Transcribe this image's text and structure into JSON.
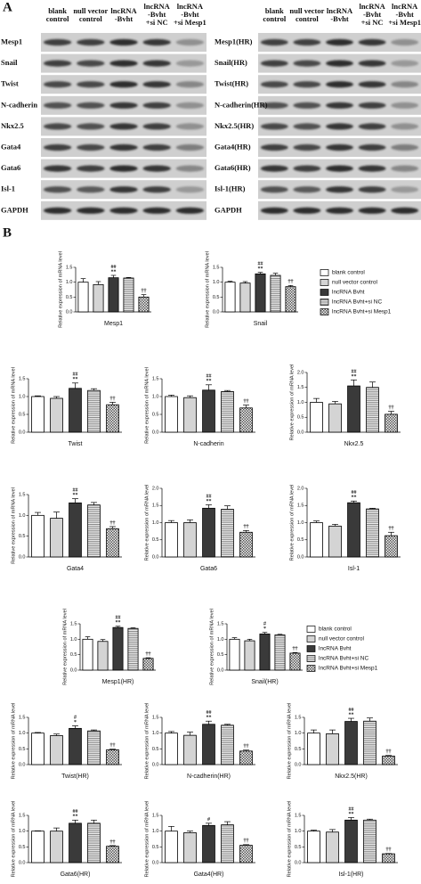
{
  "panels": {
    "a": "A",
    "b": "B"
  },
  "blots": [
    {
      "headers": [
        [
          "blank",
          "control"
        ],
        [
          "null vector",
          "control"
        ],
        [
          "lncRNA",
          "-Bvht"
        ],
        [
          "lncRNA",
          "-Bvht",
          "+si NC"
        ],
        [
          "lncRNA",
          "-Bvht",
          "+si Mesp1"
        ]
      ],
      "rows": [
        "Mesp1",
        "Snail",
        "Twist",
        "N-cadherin",
        "Nkx2.5",
        "Gata4",
        "Gata6",
        "Isl-1",
        "GAPDH"
      ]
    },
    {
      "headers": [
        [
          "blank",
          "control"
        ],
        [
          "null vector",
          "control"
        ],
        [
          "lncRNA",
          "-Bvht"
        ],
        [
          "lncRNA",
          "-Bvht",
          "+si NC"
        ],
        [
          "lncRNA",
          "-Bvht",
          "+si Mesp1"
        ]
      ],
      "rows": [
        "Mesp1(HR)",
        "Snail(HR)",
        "Twist(HR)",
        "N-cadherin(HR)",
        "Nkx2.5(HR)",
        "Gata4(HR)",
        "Gata6(HR)",
        "Isl-1(HR)",
        "GAPDH"
      ]
    }
  ],
  "legend": [
    "blank control",
    "null vector control",
    "lncRNA Bvht",
    "lncRNA Bvht+si NC",
    "lncRNA Bvht+si Mesp1"
  ],
  "bar_colors": [
    "#ffffff",
    "#d4d4d4",
    "#3a3a3a",
    "#8a8a8a",
    "#555555"
  ],
  "chart_data": [
    {
      "type": "bar",
      "title": "Mesp1",
      "y_label": "Relative expression of mRNA level",
      "values": [
        1.0,
        0.92,
        1.15,
        1.14,
        0.5
      ],
      "errors": [
        0.12,
        0.1,
        0.08,
        0.02,
        0.08
      ],
      "annotations": [
        null,
        null,
        [
          "##",
          "**"
        ],
        null,
        [
          "††"
        ]
      ],
      "ylim": [
        0,
        1.5
      ],
      "yticks": [
        {
          "value": 0,
          "label": "0.0"
        },
        0.5,
        {
          "value": 1,
          "label": "1.0"
        },
        {
          "value": 1.5,
          "label": "1.5"
        }
      ]
    },
    {
      "type": "bar",
      "title": "Snail",
      "y_label": "Relative expression of mRNA level",
      "values": [
        1.0,
        0.97,
        1.28,
        1.23,
        0.85
      ],
      "errors": [
        0.03,
        0.05,
        0.05,
        0.07,
        0.04
      ],
      "annotations": [
        null,
        null,
        [
          "##",
          "**"
        ],
        null,
        [
          "††"
        ]
      ],
      "ylim": [
        0,
        1.5
      ],
      "yticks": [
        {
          "value": 0,
          "label": "0.0"
        },
        0.5,
        {
          "value": 1,
          "label": "1.0"
        },
        {
          "value": 1.5,
          "label": "1.5"
        }
      ]
    },
    {
      "type": "bar",
      "title": "Twist",
      "y_label": "Relative expression of mRNA level",
      "values": [
        1.0,
        0.95,
        1.23,
        1.17,
        0.77
      ],
      "errors": [
        0.02,
        0.05,
        0.15,
        0.05,
        0.07
      ],
      "annotations": [
        null,
        null,
        [
          "##",
          "**"
        ],
        null,
        [
          "††"
        ]
      ],
      "ylim": [
        0,
        1.5
      ],
      "yticks": [
        {
          "value": 0,
          "label": "0.0"
        },
        0.5,
        {
          "value": 1,
          "label": "1.0"
        },
        {
          "value": 1.5,
          "label": "1.5"
        }
      ]
    },
    {
      "type": "bar",
      "title": "N-cadherin",
      "y_label": "Relative expression of mRNA level",
      "values": [
        1.0,
        0.97,
        1.18,
        1.14,
        0.68
      ],
      "errors": [
        0.04,
        0.05,
        0.15,
        0.03,
        0.08
      ],
      "annotations": [
        null,
        null,
        [
          "##",
          "**"
        ],
        null,
        [
          "††"
        ]
      ],
      "ylim": [
        0,
        1.5
      ],
      "yticks": [
        {
          "value": 0,
          "label": "0.0"
        },
        0.5,
        {
          "value": 1,
          "label": "1.0"
        },
        {
          "value": 1.5,
          "label": "1.5"
        }
      ]
    },
    {
      "type": "bar",
      "title": "Nkx2.5",
      "y_label": "Relative expression of mRNA level",
      "values": [
        1.0,
        0.95,
        1.55,
        1.5,
        0.6
      ],
      "errors": [
        0.13,
        0.08,
        0.2,
        0.18,
        0.1
      ],
      "annotations": [
        null,
        null,
        [
          "##",
          "**"
        ],
        null,
        [
          "††"
        ]
      ],
      "ylim": [
        0,
        2
      ],
      "yticks": [
        {
          "value": 0,
          "label": "0.0"
        },
        0.5,
        {
          "value": 1,
          "label": "1.0"
        },
        {
          "value": 1.5,
          "label": "1.5"
        },
        {
          "value": 2,
          "label": "2.0"
        }
      ]
    },
    {
      "type": "bar",
      "title": "Gata4",
      "y_label": "Relative expression of mRNA level",
      "values": [
        1.0,
        0.93,
        1.3,
        1.25,
        0.68
      ],
      "errors": [
        0.07,
        0.15,
        0.1,
        0.06,
        0.05
      ],
      "annotations": [
        null,
        null,
        [
          "##",
          "**"
        ],
        null,
        [
          "††"
        ]
      ],
      "ylim": [
        0,
        1.5
      ],
      "yticks": [
        {
          "value": 0,
          "label": "0.0"
        },
        0.5,
        {
          "value": 1,
          "label": "1.0"
        },
        {
          "value": 1.5,
          "label": "1.5"
        }
      ]
    },
    {
      "type": "bar",
      "title": "Gata6",
      "y_label": "Relative expression of mRNA level",
      "values": [
        1.0,
        1.0,
        1.42,
        1.39,
        0.72
      ],
      "errors": [
        0.06,
        0.08,
        0.1,
        0.1,
        0.05
      ],
      "annotations": [
        null,
        null,
        [
          "##",
          "**"
        ],
        null,
        [
          "††"
        ]
      ],
      "ylim": [
        0,
        2
      ],
      "yticks": [
        {
          "value": 0,
          "label": "0.0"
        },
        0.5,
        {
          "value": 1,
          "label": "1.0"
        },
        {
          "value": 1.5,
          "label": "1.5"
        },
        {
          "value": 2,
          "label": "2.0"
        }
      ]
    },
    {
      "type": "bar",
      "title": "Isl-1",
      "y_label": "Relative expression of mRNA level",
      "values": [
        1.0,
        0.9,
        1.58,
        1.4,
        0.62
      ],
      "errors": [
        0.05,
        0.05,
        0.05,
        0.02,
        0.1
      ],
      "annotations": [
        null,
        null,
        [
          "##",
          "**"
        ],
        null,
        [
          "††"
        ]
      ],
      "ylim": [
        0,
        2
      ],
      "yticks": [
        {
          "value": 0,
          "label": "0.0"
        },
        0.5,
        {
          "value": 1,
          "label": "1.0"
        },
        {
          "value": 1.5,
          "label": "1.5"
        },
        {
          "value": 2,
          "label": "2.0"
        }
      ]
    },
    {
      "type": "bar",
      "title": "Mesp1(HR)",
      "y_label": "Relative expression of mRNA level",
      "values": [
        1.0,
        0.93,
        1.38,
        1.35,
        0.38
      ],
      "errors": [
        0.08,
        0.06,
        0.04,
        0.02,
        0.02
      ],
      "annotations": [
        null,
        null,
        [
          "##",
          "**"
        ],
        null,
        [
          "††"
        ]
      ],
      "ylim": [
        0,
        1.5
      ],
      "yticks": [
        {
          "value": 0,
          "label": "0.0"
        },
        0.5,
        {
          "value": 1,
          "label": "1.0"
        },
        {
          "value": 1.5,
          "label": "1.5"
        }
      ]
    },
    {
      "type": "bar",
      "title": "Snail(HR)",
      "y_label": "Relative expression of mRNA level",
      "values": [
        1.0,
        0.95,
        1.17,
        1.14,
        0.55
      ],
      "errors": [
        0.05,
        0.05,
        0.05,
        0.02,
        0.02
      ],
      "annotations": [
        null,
        null,
        [
          "#",
          "*"
        ],
        null,
        [
          "††"
        ]
      ],
      "ylim": [
        0,
        1.5
      ],
      "yticks": [
        {
          "value": 0,
          "label": "0.0"
        },
        0.5,
        {
          "value": 1,
          "label": "1.0"
        },
        {
          "value": 1.5,
          "label": "1.5"
        }
      ]
    },
    {
      "type": "bar",
      "title": "Twist(HR)",
      "y_label": "Relative expression of mRNA level",
      "values": [
        1.0,
        0.92,
        1.15,
        1.07,
        0.47
      ],
      "errors": [
        0.02,
        0.05,
        0.08,
        0.03,
        0.02
      ],
      "annotations": [
        null,
        null,
        [
          "#",
          "*"
        ],
        null,
        [
          "††"
        ]
      ],
      "ylim": [
        0,
        1.5
      ],
      "yticks": [
        {
          "value": 0,
          "label": "0.0"
        },
        0.5,
        {
          "value": 1,
          "label": "1.0"
        },
        {
          "value": 1.5,
          "label": "1.5"
        }
      ]
    },
    {
      "type": "bar",
      "title": "N-cadherin(HR)",
      "y_label": "Relative expression of mRNA level",
      "values": [
        1.0,
        0.93,
        1.28,
        1.25,
        0.43
      ],
      "errors": [
        0.05,
        0.1,
        0.1,
        0.03,
        0.03
      ],
      "annotations": [
        null,
        null,
        [
          "##",
          "**"
        ],
        null,
        [
          "††"
        ]
      ],
      "ylim": [
        0,
        1.5
      ],
      "yticks": [
        {
          "value": 0,
          "label": "0.0"
        },
        0.5,
        {
          "value": 1,
          "label": "1.0"
        },
        {
          "value": 1.5,
          "label": "1.5"
        }
      ]
    },
    {
      "type": "bar",
      "title": "Nkx2.5(HR)",
      "y_label": "Relative expression of mRNA level",
      "values": [
        1.0,
        0.98,
        1.37,
        1.38,
        0.27
      ],
      "errors": [
        0.1,
        0.12,
        0.1,
        0.1,
        0.02
      ],
      "annotations": [
        null,
        null,
        [
          "##",
          "**"
        ],
        null,
        [
          "††"
        ]
      ],
      "ylim": [
        0,
        1.5
      ],
      "yticks": [
        {
          "value": 0,
          "label": "0.0"
        },
        0.5,
        {
          "value": 1,
          "label": "1.0"
        },
        {
          "value": 1.5,
          "label": "1.5"
        }
      ]
    },
    {
      "type": "bar",
      "title": "Gata6(HR)",
      "y_label": "Relative expression of mRNA level",
      "values": [
        1.0,
        1.0,
        1.25,
        1.25,
        0.52
      ],
      "errors": [
        0.01,
        0.1,
        0.1,
        0.1,
        0.02
      ],
      "annotations": [
        null,
        null,
        [
          "##",
          "**"
        ],
        null,
        [
          "††"
        ]
      ],
      "ylim": [
        0,
        1.5
      ],
      "yticks": [
        {
          "value": 0,
          "label": "0.0"
        },
        0.5,
        {
          "value": 1,
          "label": "1.0"
        },
        {
          "value": 1.5,
          "label": "1.5"
        }
      ]
    },
    {
      "type": "bar",
      "title": "Gata4(HR)",
      "y_label": "Relative expression of mRNA level",
      "values": [
        1.0,
        0.95,
        1.18,
        1.2,
        0.55
      ],
      "errors": [
        0.15,
        0.05,
        0.07,
        0.1,
        0.02
      ],
      "annotations": [
        null,
        null,
        [
          "#"
        ],
        null,
        [
          "††"
        ]
      ],
      "ylim": [
        0,
        1.5
      ],
      "yticks": [
        {
          "value": 0,
          "label": "0.0"
        },
        0.5,
        {
          "value": 1,
          "label": "1.0"
        },
        {
          "value": 1.5,
          "label": "1.5"
        }
      ]
    },
    {
      "type": "bar",
      "title": "Isl-1(HR)",
      "y_label": "Relative expression of mRNA level",
      "values": [
        1.0,
        0.97,
        1.35,
        1.35,
        0.28
      ],
      "errors": [
        0.03,
        0.08,
        0.08,
        0.03,
        0.01
      ],
      "annotations": [
        null,
        null,
        [
          "##",
          "**"
        ],
        null,
        [
          "††"
        ]
      ],
      "ylim": [
        0,
        1.5
      ],
      "yticks": [
        {
          "value": 0,
          "label": "0.0"
        },
        0.5,
        {
          "value": 1,
          "label": "1.0"
        },
        {
          "value": 1.5,
          "label": "1.5"
        }
      ]
    }
  ]
}
